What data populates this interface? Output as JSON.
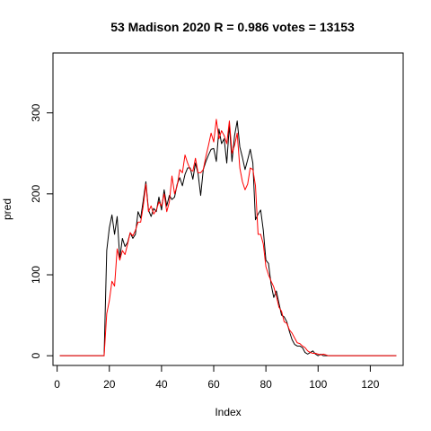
{
  "chart_data": {
    "type": "line",
    "title": "53 Madison 2020 R = 0.986 votes = 13153",
    "xlabel": "Index",
    "ylabel": "pred",
    "xlim": [
      -1.6,
      132.6
    ],
    "ylim": [
      -12,
      374
    ],
    "xticks": [
      0,
      20,
      40,
      60,
      80,
      100,
      120
    ],
    "yticks": [
      0,
      100,
      200,
      300
    ],
    "grid": false,
    "legend": "none",
    "series": [
      {
        "color": "#000000",
        "x": [
          1,
          2,
          3,
          4,
          5,
          6,
          7,
          8,
          9,
          10,
          11,
          12,
          13,
          14,
          15,
          16,
          17,
          18,
          19,
          20,
          21,
          22,
          23,
          24,
          25,
          26,
          27,
          28,
          29,
          30,
          31,
          32,
          33,
          34,
          35,
          36,
          37,
          38,
          39,
          40,
          41,
          42,
          43,
          44,
          45,
          46,
          47,
          48,
          49,
          50,
          51,
          52,
          53,
          54,
          55,
          56,
          57,
          58,
          59,
          60,
          61,
          62,
          63,
          64,
          65,
          66,
          67,
          68,
          69,
          70,
          71,
          72,
          73,
          74,
          75,
          76,
          77,
          78,
          79,
          80,
          81,
          82,
          83,
          84,
          85,
          86,
          87,
          88,
          89,
          90,
          91,
          92,
          93,
          94,
          95,
          96,
          97,
          98,
          99,
          100,
          101,
          102,
          103,
          104,
          105,
          106,
          107,
          108,
          109,
          110,
          111,
          112,
          113,
          114,
          115,
          116,
          117,
          118,
          119,
          120,
          121,
          122,
          123,
          124,
          125,
          126,
          127,
          128,
          129,
          130
        ],
        "values": [
          0,
          0,
          0,
          0,
          0,
          0,
          0,
          0,
          0,
          0,
          0,
          0,
          0,
          0,
          0,
          0,
          0,
          0,
          130,
          158,
          174,
          150,
          172,
          120,
          145,
          135,
          140,
          152,
          145,
          150,
          178,
          170,
          192,
          215,
          180,
          172,
          182,
          178,
          196,
          180,
          205,
          185,
          198,
          193,
          196,
          212,
          220,
          210,
          224,
          232,
          232,
          218,
          238,
          225,
          198,
          230,
          240,
          248,
          255,
          256,
          240,
          280,
          262,
          268,
          238,
          285,
          240,
          272,
          290,
          258,
          245,
          230,
          242,
          255,
          238,
          168,
          175,
          180,
          155,
          118,
          114,
          88,
          72,
          80,
          65,
          50,
          48,
          42,
          30,
          20,
          14,
          12,
          12,
          10,
          4,
          2,
          4,
          6,
          2,
          0,
          2,
          0,
          0,
          0,
          0,
          0,
          0,
          0,
          0,
          0,
          0,
          0,
          0,
          0,
          0,
          0,
          0,
          0,
          0,
          0,
          0,
          0,
          0,
          0,
          0,
          0,
          0,
          0,
          0,
          0
        ]
      },
      {
        "color": "#ff0000",
        "x": [
          1,
          2,
          3,
          4,
          5,
          6,
          7,
          8,
          9,
          10,
          11,
          12,
          13,
          14,
          15,
          16,
          17,
          18,
          19,
          20,
          21,
          22,
          23,
          24,
          25,
          26,
          27,
          28,
          29,
          30,
          31,
          32,
          33,
          34,
          35,
          36,
          37,
          38,
          39,
          40,
          41,
          42,
          43,
          44,
          45,
          46,
          47,
          48,
          49,
          50,
          51,
          52,
          53,
          54,
          55,
          56,
          57,
          58,
          59,
          60,
          61,
          62,
          63,
          64,
          65,
          66,
          67,
          68,
          69,
          70,
          71,
          72,
          73,
          74,
          75,
          76,
          77,
          78,
          79,
          80,
          81,
          82,
          83,
          84,
          85,
          86,
          87,
          88,
          89,
          90,
          91,
          92,
          93,
          94,
          95,
          96,
          97,
          98,
          99,
          100,
          101,
          102,
          103,
          104,
          105,
          106,
          107,
          108,
          109,
          110,
          111,
          112,
          113,
          114,
          115,
          116,
          117,
          118,
          119,
          120,
          121,
          122,
          123,
          124,
          125,
          126,
          127,
          128,
          129,
          130
        ],
        "values": [
          0,
          0,
          0,
          0,
          0,
          0,
          0,
          0,
          0,
          0,
          0,
          0,
          0,
          0,
          0,
          0,
          0,
          0,
          52,
          68,
          92,
          86,
          132,
          118,
          130,
          125,
          138,
          152,
          148,
          155,
          165,
          165,
          185,
          212,
          178,
          185,
          175,
          180,
          190,
          185,
          200,
          178,
          190,
          222,
          200,
          210,
          230,
          226,
          248,
          238,
          230,
          228,
          244,
          226,
          226,
          230,
          246,
          260,
          275,
          264,
          292,
          268,
          278,
          272,
          262,
          290,
          250,
          260,
          275,
          232,
          215,
          205,
          212,
          232,
          230,
          210,
          150,
          150,
          138,
          110,
          100,
          92,
          85,
          74,
          60,
          55,
          42,
          40,
          32,
          28,
          22,
          16,
          15,
          12,
          10,
          6,
          4,
          3,
          3,
          2,
          1,
          2,
          1,
          0,
          0,
          0,
          0,
          0,
          0,
          0,
          0,
          0,
          0,
          0,
          0,
          0,
          0,
          0,
          0,
          0,
          0,
          0,
          0,
          0,
          0,
          0,
          0,
          0,
          0,
          0
        ]
      }
    ]
  }
}
